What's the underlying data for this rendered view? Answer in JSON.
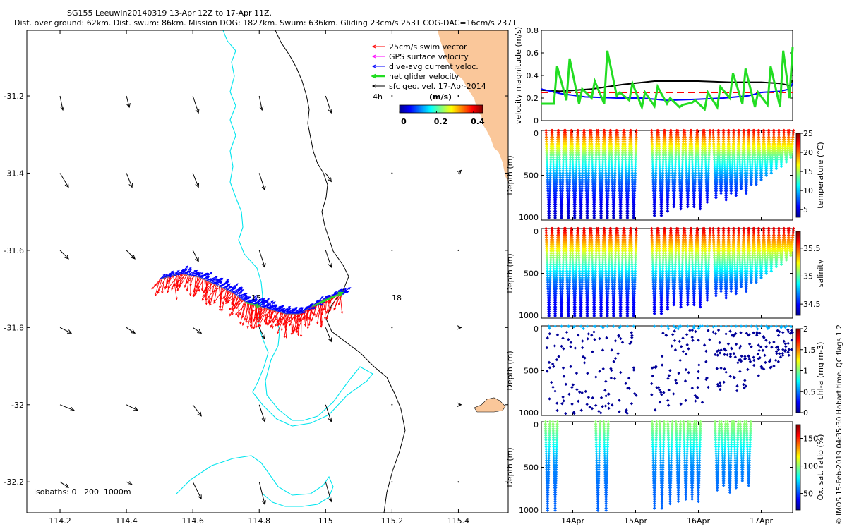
{
  "header": {
    "title_line1": "SG155 Leeuwin20140319 13-Apr 12Z to 17-Apr 11Z.",
    "title_line2": "Dist. over ground: 62km. Dist. swum: 86km. Mission DOG: 1827km. Swum: 636km. Gliding 23cm/s 253T COG-DAC=16cm/s 237T"
  },
  "colors": {
    "land": "#fac79a",
    "isobath": "#00e5ee",
    "coast": "#000000",
    "swim_vector": "#ff0000",
    "gps_velocity": "#ff00ff",
    "dac": "#0000ff",
    "net_velocity": "#22dd22",
    "geo_velocity": "#000000"
  },
  "chart_data": [
    {
      "type": "map",
      "id": "track-map",
      "xlim": [
        114.1,
        115.55
      ],
      "ylim": [
        -32.28,
        -31.03
      ],
      "xticks": [
        114.2,
        114.4,
        114.6,
        114.8,
        115,
        115.2,
        115.4
      ],
      "xtick_labels": [
        "114.2",
        "114.4",
        "114.6",
        "114.8",
        "115",
        "115.2",
        "115.4"
      ],
      "yticks": [
        -31.2,
        -31.4,
        -31.6,
        -31.8,
        -32,
        -32.2
      ],
      "ytick_labels": [
        "-31.2",
        "-31.4",
        "-31.6",
        "-31.8",
        "-32",
        "-32.2"
      ],
      "legend": {
        "items": [
          {
            "label": "25cm/s swim vector",
            "color": "#ff0000"
          },
          {
            "label": "GPS surface velocity",
            "color": "#ff00ff"
          },
          {
            "label": "dive-avg current veloc.",
            "color": "#0000ff"
          },
          {
            "label": "net glider velocity",
            "color": "#22dd22"
          },
          {
            "label": "sfc geo. vel. 17-Apr-2014",
            "color": "#000000"
          }
        ],
        "interval_label": "4h",
        "colorbar_title": "(m/s)",
        "colorbar_ticks": [
          "0",
          "0.2",
          "0.4"
        ],
        "colorbar_range": [
          0,
          0.45
        ]
      },
      "isobaths_label": "isobaths: 0   200  1000m",
      "day_labels": [
        {
          "text": "15",
          "lon": 114.78,
          "lat": -31.74
        },
        {
          "text": "18",
          "lon": 115.22,
          "lat": -31.74
        }
      ],
      "track": [
        [
          114.5,
          -31.675
        ],
        [
          114.56,
          -31.66
        ],
        [
          114.62,
          -31.67
        ],
        [
          114.67,
          -31.69
        ],
        [
          114.72,
          -31.71
        ],
        [
          114.76,
          -31.735
        ],
        [
          114.8,
          -31.745
        ],
        [
          114.84,
          -31.755
        ],
        [
          114.88,
          -31.765
        ],
        [
          114.92,
          -31.765
        ],
        [
          114.96,
          -31.745
        ],
        [
          115.0,
          -31.725
        ],
        [
          115.05,
          -31.71
        ]
      ],
      "geo_arrows": {
        "lons": [
          114.2,
          114.4,
          114.6,
          114.8,
          115.0,
          115.2,
          115.4
        ],
        "lats": [
          -31.2,
          -31.4,
          -31.6,
          -31.8,
          -32.0,
          -32.2
        ],
        "u": [
          [
            0.01,
            0.01,
            0.02,
            0.01,
            0.02,
            0.0,
            0.0
          ],
          [
            0.03,
            0.02,
            0.02,
            0.02,
            0.02,
            0.0,
            0.01
          ],
          [
            0.03,
            0.03,
            0.02,
            0.02,
            0.02,
            0.0,
            0.0
          ],
          [
            0.04,
            0.03,
            0.03,
            0.02,
            0.02,
            0.0,
            0.01
          ],
          [
            0.05,
            0.04,
            0.03,
            0.02,
            0.02,
            0.0,
            0.01
          ],
          [
            0.03,
            0.02,
            0.03,
            0.02,
            0.02,
            0.0,
            0.0
          ]
        ],
        "v": [
          [
            -0.05,
            -0.04,
            -0.06,
            -0.05,
            -0.06,
            0.0,
            0.0
          ],
          [
            -0.05,
            -0.05,
            -0.05,
            -0.06,
            -0.03,
            0.0,
            0.01
          ],
          [
            -0.03,
            -0.03,
            -0.04,
            -0.06,
            -0.06,
            0.0,
            0.0
          ],
          [
            -0.02,
            -0.02,
            -0.02,
            -0.04,
            -0.05,
            0.0,
            0.0
          ],
          [
            -0.02,
            -0.02,
            -0.04,
            -0.06,
            -0.06,
            0.0,
            0.0
          ],
          [
            -0.02,
            -0.01,
            -0.06,
            -0.08,
            -0.07,
            0.0,
            0.0
          ]
        ]
      }
    },
    {
      "type": "line",
      "id": "velocity-magnitude",
      "ylabel": "velocity magnitude (m/s)",
      "ylim": [
        0,
        0.8
      ],
      "yticks": [
        0,
        0.2,
        0.4,
        0.6,
        0.8
      ],
      "ytick_labels": [
        "0",
        "0.2",
        "0.4",
        "0.6",
        "0.8"
      ],
      "xlim": [
        13.5,
        17.5
      ],
      "series": [
        {
          "name": "swim reference",
          "color": "#ff0000",
          "dashed": true,
          "x": [
            13.5,
            17.5
          ],
          "y": [
            0.25,
            0.25
          ]
        },
        {
          "name": "geostrophic",
          "color": "#000000",
          "x": [
            13.5,
            13.8,
            14.3,
            14.8,
            15.3,
            16.0,
            16.5,
            17.0,
            17.3,
            17.45,
            17.5
          ],
          "y": [
            0.27,
            0.26,
            0.28,
            0.32,
            0.35,
            0.35,
            0.34,
            0.34,
            0.33,
            0.31,
            0.36
          ]
        },
        {
          "name": "dive-avg current",
          "color": "#0000ff",
          "x": [
            13.5,
            13.8,
            14.2,
            14.7,
            15.1,
            15.5,
            16.0,
            16.4,
            16.8,
            17.0,
            17.3,
            17.45,
            17.5
          ],
          "y": [
            0.28,
            0.24,
            0.21,
            0.2,
            0.2,
            0.18,
            0.19,
            0.2,
            0.22,
            0.25,
            0.26,
            0.28,
            0.33
          ]
        },
        {
          "name": "net glider velocity",
          "color": "#22dd22",
          "step": true,
          "x": [
            13.5,
            13.7,
            13.75,
            13.9,
            13.95,
            14.1,
            14.15,
            14.3,
            14.35,
            14.5,
            14.55,
            14.7,
            14.75,
            14.9,
            14.95,
            15.1,
            15.15,
            15.3,
            15.35,
            15.5,
            15.55,
            15.7,
            15.75,
            15.9,
            15.95,
            16.1,
            16.15,
            16.3,
            16.35,
            16.5,
            16.55,
            16.7,
            16.75,
            16.9,
            16.95,
            17.1,
            17.15,
            17.3,
            17.35,
            17.45,
            17.5
          ],
          "y": [
            0.15,
            0.15,
            0.48,
            0.18,
            0.55,
            0.15,
            0.28,
            0.2,
            0.35,
            0.15,
            0.62,
            0.22,
            0.25,
            0.18,
            0.33,
            0.12,
            0.25,
            0.13,
            0.3,
            0.15,
            0.2,
            0.12,
            0.14,
            0.16,
            0.18,
            0.1,
            0.25,
            0.12,
            0.3,
            0.2,
            0.42,
            0.15,
            0.46,
            0.12,
            0.25,
            0.14,
            0.48,
            0.12,
            0.62,
            0.2,
            0.65
          ]
        }
      ]
    },
    {
      "type": "scatter",
      "id": "temperature",
      "variable": "temperature",
      "ylabel": "Depth (m)",
      "ylim": [
        0,
        1000
      ],
      "yticks": [
        0,
        500,
        1000
      ],
      "ytick_labels": [
        "0",
        "500",
        "1000"
      ],
      "xlim": [
        13.5,
        17.5
      ],
      "colorbar_label": "temperature (°C)",
      "colorbar_range": [
        3,
        25
      ],
      "colorbar_ticks": [
        5,
        10,
        15,
        20,
        25
      ],
      "colorbar_tick_labels": [
        "5",
        "10",
        "15",
        "20",
        "25"
      ],
      "profile_times": [
        13.62,
        13.72,
        13.82,
        13.93,
        14.03,
        14.13,
        14.23,
        14.34,
        14.45,
        14.55,
        14.65,
        14.76,
        14.87,
        14.97,
        15.3,
        15.41,
        15.51,
        15.61,
        15.72,
        15.83,
        15.93,
        16.03,
        16.14,
        16.28,
        16.36,
        16.44,
        16.52,
        16.6,
        16.68,
        16.76,
        16.84,
        16.92,
        17.0,
        17.08,
        17.16,
        17.24,
        17.32,
        17.4,
        17.47
      ],
      "profile_max_depths": [
        980,
        990,
        985,
        990,
        985,
        990,
        985,
        980,
        990,
        985,
        990,
        985,
        990,
        985,
        970,
        960,
        900,
        870,
        890,
        860,
        850,
        880,
        820,
        760,
        720,
        780,
        700,
        740,
        660,
        700,
        620,
        600,
        560,
        520,
        480,
        440,
        400,
        360,
        320
      ],
      "depth_values": [
        0,
        20,
        50,
        100,
        200,
        300,
        400,
        500,
        600,
        800,
        1000
      ],
      "temperature_profile": [
        22,
        22,
        21,
        19,
        16,
        13,
        11,
        9,
        7.5,
        5.5,
        4.5
      ]
    },
    {
      "type": "scatter",
      "id": "salinity",
      "variable": "salinity",
      "ylabel": "Depth (m)",
      "ylim": [
        0,
        1000
      ],
      "yticks": [
        0,
        500,
        1000
      ],
      "ytick_labels": [
        "0",
        "500",
        "1000"
      ],
      "xlim": [
        13.5,
        17.5
      ],
      "colorbar_label": "salinity",
      "colorbar_range": [
        34.3,
        35.8
      ],
      "colorbar_ticks": [
        34.5,
        35,
        35.5
      ],
      "colorbar_tick_labels": [
        "34.5",
        "35",
        "35.5"
      ],
      "depth_values": [
        0,
        20,
        50,
        100,
        200,
        300,
        400,
        500,
        600,
        800,
        1000
      ],
      "salinity_profile": [
        35.65,
        35.65,
        35.6,
        35.45,
        35.3,
        35.1,
        34.95,
        34.8,
        34.65,
        34.5,
        34.45
      ]
    },
    {
      "type": "scatter",
      "id": "chlorophyll",
      "variable": "chl-a",
      "ylabel": "Depth (m)",
      "ylim": [
        0,
        1000
      ],
      "yticks": [
        0,
        500,
        1000
      ],
      "ytick_labels": [
        "0",
        "500",
        "1000"
      ],
      "xlim": [
        13.5,
        17.5
      ],
      "colorbar_label": "chl-a (mg m-3)",
      "colorbar_range": [
        0,
        2
      ],
      "colorbar_ticks": [
        0,
        0.5,
        1,
        1.5,
        2
      ],
      "colorbar_tick_labels": [
        "0",
        "0.5",
        "1",
        "1.5",
        "2"
      ],
      "surface_value": 0.6,
      "deep_value": 0.05
    },
    {
      "type": "scatter",
      "id": "oxygen",
      "variable": "Ox. sat. ratio",
      "ylabel": "Depth (m)",
      "ylim": [
        0,
        1000
      ],
      "yticks": [
        0,
        500,
        1000
      ],
      "ytick_labels": [
        "0",
        "500",
        "1000"
      ],
      "xlim": [
        13.5,
        17.5
      ],
      "xticks": [
        14,
        15,
        16,
        17
      ],
      "xtick_labels": [
        "14Apr",
        "15Apr",
        "16Apr",
        "17Apr"
      ],
      "colorbar_label": "Ox. sat. ratio (%)",
      "colorbar_range": [
        20,
        175
      ],
      "colorbar_ticks": [
        50,
        100,
        150
      ],
      "colorbar_tick_labels": [
        "50",
        "100",
        "150"
      ],
      "oxygen_profile_times": [
        13.6,
        13.72,
        14.4,
        14.53,
        15.3,
        15.42,
        15.55,
        15.68,
        15.8,
        15.9,
        16.0,
        16.3,
        16.4,
        16.5,
        16.6,
        16.7,
        16.8
      ],
      "oxygen_profile": [
        100,
        100,
        98,
        95,
        85,
        75,
        65,
        60,
        58,
        55,
        55
      ]
    }
  ],
  "footer": {
    "credit": "© IMOS 15-Feb-2019 04:35:30 Hobart time. QC flags 1  2"
  }
}
